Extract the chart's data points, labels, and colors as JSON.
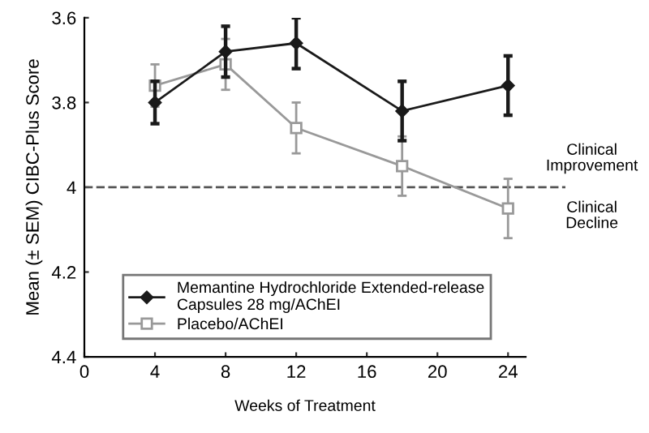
{
  "chart_data": {
    "type": "line",
    "xlabel": "Weeks of Treatment",
    "ylabel": "Mean (± SEM) CIBC-Plus Score",
    "x": [
      4,
      8,
      12,
      18,
      24
    ],
    "series": [
      {
        "name": "Memantine Hydrochloride Extended-release\nCapsules 28 mg/AChEI",
        "color": "#1a1a1a",
        "marker": "diamond",
        "values": [
          3.8,
          3.68,
          3.66,
          3.82,
          3.76
        ],
        "errors": [
          0.05,
          0.06,
          0.06,
          0.07,
          0.07
        ]
      },
      {
        "name": "Placebo/AChEI",
        "color": "#999999",
        "marker": "square",
        "values": [
          3.76,
          3.71,
          3.86,
          3.95,
          4.05
        ],
        "errors": [
          0.05,
          0.06,
          0.06,
          0.07,
          0.07
        ]
      }
    ],
    "xlim": [
      0,
      25
    ],
    "xticks": [
      0,
      4,
      8,
      12,
      16,
      20,
      24
    ],
    "ylim": [
      4.4,
      3.6
    ],
    "yticks": [
      3.6,
      3.8,
      {
        "value": 4,
        "label": "4"
      },
      4.2,
      4.4
    ],
    "ref_lines": [
      {
        "axis": "y",
        "value": 4,
        "color": "#555555",
        "line_style": "dashed"
      }
    ],
    "annotations": [
      "Clinical\nImprovement",
      "Clinical\nDecline"
    ],
    "legend": "bottom left",
    "grid": false
  }
}
